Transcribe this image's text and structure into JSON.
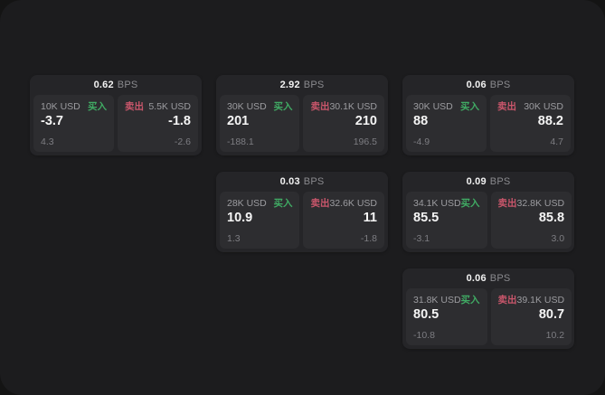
{
  "page": {
    "background": "#141414",
    "surface_background": "#1c1c1e",
    "card_background": "#252528",
    "panel_background": "#2d2d30"
  },
  "colors": {
    "buy_accent": "#40ab64",
    "sell_accent": "#c9566b",
    "value_text": "#f5f5f5",
    "muted_text": "#9c9ca0",
    "delta_text": "#7d7d82"
  },
  "labels": {
    "bps_unit": "BPS",
    "buy": "买入",
    "sell": "卖出"
  },
  "cards": [
    {
      "row": 1,
      "col": 1,
      "bps": "0.62",
      "buy": {
        "amount": "10K USD",
        "value": "-3.7",
        "delta": "4.3"
      },
      "sell": {
        "amount": "5.5K USD",
        "value": "-1.8",
        "delta": "-2.6"
      }
    },
    {
      "row": 1,
      "col": 2,
      "bps": "2.92",
      "buy": {
        "amount": "30K USD",
        "value": "201",
        "delta": "-188.1"
      },
      "sell": {
        "amount": "30.1K USD",
        "value": "210",
        "delta": "196.5"
      }
    },
    {
      "row": 1,
      "col": 3,
      "bps": "0.06",
      "buy": {
        "amount": "30K USD",
        "value": "88",
        "delta": "-4.9"
      },
      "sell": {
        "amount": "30K USD",
        "value": "88.2",
        "delta": "4.7"
      }
    },
    {
      "row": 2,
      "col": 2,
      "bps": "0.03",
      "buy": {
        "amount": "28K USD",
        "value": "10.9",
        "delta": "1.3"
      },
      "sell": {
        "amount": "32.6K USD",
        "value": "11",
        "delta": "-1.8"
      }
    },
    {
      "row": 2,
      "col": 3,
      "bps": "0.09",
      "buy": {
        "amount": "34.1K USD",
        "value": "85.5",
        "delta": "-3.1"
      },
      "sell": {
        "amount": "32.8K USD",
        "value": "85.8",
        "delta": "3.0"
      }
    },
    {
      "row": 3,
      "col": 3,
      "bps": "0.06",
      "buy": {
        "amount": "31.8K USD",
        "value": "80.5",
        "delta": "-10.8"
      },
      "sell": {
        "amount": "39.1K USD",
        "value": "80.7",
        "delta": "10.2"
      }
    }
  ]
}
